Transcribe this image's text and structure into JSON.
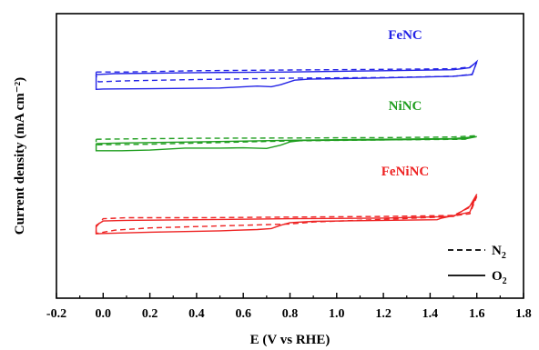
{
  "chart_data": {
    "type": "line",
    "xlabel": "E (V vs RHE)",
    "ylabel": "Current density (mA cm⁻²)",
    "xlim": [
      -0.2,
      1.8
    ],
    "xticks": [
      "-0.2",
      "0.0",
      "0.2",
      "0.4",
      "0.6",
      "0.8",
      "1.0",
      "1.2",
      "1.4",
      "1.6",
      "1.8"
    ],
    "y_tick_labels": "none",
    "grid": false,
    "legend": {
      "placement": "bottom-right",
      "entries": [
        {
          "label": "N",
          "sub": "2",
          "style": "dashed"
        },
        {
          "label": "O",
          "sub": "2",
          "style": "solid"
        }
      ]
    },
    "y_units": "relative (offset traces, no scale shown)",
    "panels": [
      {
        "name": "FeNC",
        "color": "#2323e6",
        "series": [
          {
            "condition": "N2",
            "style": "dashed",
            "points": [
              [
                -0.03,
                -2.0
              ],
              [
                0.0,
                -2.0
              ],
              [
                0.1,
                -2.0
              ],
              [
                0.4,
                -1.6
              ],
              [
                0.8,
                -1.4
              ],
              [
                1.2,
                -1.2
              ],
              [
                1.5,
                -1.0
              ],
              [
                1.57,
                -0.5
              ],
              [
                1.6,
                1.0
              ],
              [
                1.58,
                -2.7
              ],
              [
                1.5,
                -3.3
              ],
              [
                1.2,
                -3.7
              ],
              [
                0.8,
                -3.9
              ],
              [
                0.4,
                -4.3
              ],
              [
                0.1,
                -4.7
              ],
              [
                -0.02,
                -5.0
              ],
              [
                -0.03,
                -3.2
              ],
              [
                -0.03,
                -2.0
              ]
            ]
          },
          {
            "condition": "O2",
            "style": "solid",
            "points": [
              [
                -0.03,
                -2.8
              ],
              [
                0.05,
                -2.5
              ],
              [
                0.4,
                -2.2
              ],
              [
                0.8,
                -2.0
              ],
              [
                1.2,
                -1.6
              ],
              [
                1.5,
                -1.3
              ],
              [
                1.57,
                -0.7
              ],
              [
                1.6,
                1.2
              ],
              [
                1.58,
                -2.8
              ],
              [
                1.5,
                -3.3
              ],
              [
                1.2,
                -3.8
              ],
              [
                0.88,
                -4.2
              ],
              [
                0.82,
                -4.5
              ],
              [
                0.76,
                -5.9
              ],
              [
                0.72,
                -6.5
              ],
              [
                0.66,
                -6.3
              ],
              [
                0.5,
                -6.9
              ],
              [
                0.2,
                -7.1
              ],
              [
                0.0,
                -7.2
              ],
              [
                -0.03,
                -7.3
              ],
              [
                -0.03,
                -5.0
              ],
              [
                -0.03,
                -2.8
              ]
            ]
          }
        ]
      },
      {
        "name": "NiNC",
        "color": "#1f9e1f",
        "series": [
          {
            "condition": "N2",
            "style": "dashed",
            "points": [
              [
                -0.03,
                0.5
              ],
              [
                0.1,
                0.6
              ],
              [
                0.4,
                0.8
              ],
              [
                0.8,
                0.9
              ],
              [
                1.2,
                1.0
              ],
              [
                1.5,
                1.2
              ],
              [
                1.6,
                1.6
              ],
              [
                1.55,
                0.5
              ],
              [
                1.2,
                0.3
              ],
              [
                0.8,
                0.0
              ],
              [
                0.5,
                -0.5
              ],
              [
                0.2,
                -1.0
              ],
              [
                -0.03,
                -1.2
              ],
              [
                -0.03,
                0.5
              ]
            ]
          },
          {
            "condition": "O2",
            "style": "solid",
            "points": [
              [
                -0.03,
                -0.8
              ],
              [
                0.1,
                -0.6
              ],
              [
                0.4,
                -0.3
              ],
              [
                0.8,
                0.2
              ],
              [
                1.2,
                0.5
              ],
              [
                1.5,
                0.7
              ],
              [
                1.6,
                1.3
              ],
              [
                1.55,
                0.6
              ],
              [
                1.2,
                0.3
              ],
              [
                0.85,
                0.1
              ],
              [
                0.8,
                -0.3
              ],
              [
                0.76,
                -1.3
              ],
              [
                0.7,
                -2.3
              ],
              [
                0.6,
                -2.1
              ],
              [
                0.5,
                -2.2
              ],
              [
                0.35,
                -2.2
              ],
              [
                0.2,
                -2.8
              ],
              [
                0.08,
                -3.0
              ],
              [
                0.0,
                -3.0
              ],
              [
                -0.03,
                -3.0
              ],
              [
                -0.03,
                -0.8
              ]
            ]
          }
        ]
      },
      {
        "name": "FeNiNC",
        "color": "#ee2222",
        "series": [
          {
            "condition": "N2",
            "style": "dashed",
            "points": [
              [
                -0.03,
                -3.5
              ],
              [
                0.0,
                -1.0
              ],
              [
                0.1,
                -0.7
              ],
              [
                0.4,
                -0.7
              ],
              [
                0.8,
                -0.5
              ],
              [
                1.2,
                -0.3
              ],
              [
                1.5,
                0.0
              ],
              [
                1.57,
                2.5
              ],
              [
                1.6,
                5.8
              ],
              [
                1.57,
                0.5
              ],
              [
                1.45,
                -0.5
              ],
              [
                1.2,
                -1.2
              ],
              [
                0.9,
                -2.0
              ],
              [
                0.8,
                -2.6
              ],
              [
                0.5,
                -3.2
              ],
              [
                0.2,
                -3.8
              ],
              [
                0.05,
                -4.5
              ],
              [
                -0.03,
                -5.5
              ],
              [
                -0.03,
                -3.5
              ]
            ]
          },
          {
            "condition": "O2",
            "style": "solid",
            "points": [
              [
                -0.03,
                -3.0
              ],
              [
                0.0,
                -1.7
              ],
              [
                0.1,
                -1.5
              ],
              [
                0.4,
                -1.3
              ],
              [
                0.8,
                -1.0
              ],
              [
                1.2,
                -0.8
              ],
              [
                1.5,
                -0.3
              ],
              [
                1.57,
                2.8
              ],
              [
                1.6,
                6.5
              ],
              [
                1.57,
                1.0
              ],
              [
                1.45,
                -0.8
              ],
              [
                1.43,
                -1.3
              ],
              [
                1.2,
                -1.5
              ],
              [
                0.9,
                -1.8
              ],
              [
                0.8,
                -2.2
              ],
              [
                0.76,
                -3.0
              ],
              [
                0.72,
                -4.0
              ],
              [
                0.66,
                -4.3
              ],
              [
                0.5,
                -4.7
              ],
              [
                0.2,
                -5.1
              ],
              [
                0.0,
                -5.5
              ],
              [
                -0.03,
                -5.6
              ],
              [
                -0.03,
                -3.0
              ]
            ]
          }
        ]
      }
    ]
  }
}
